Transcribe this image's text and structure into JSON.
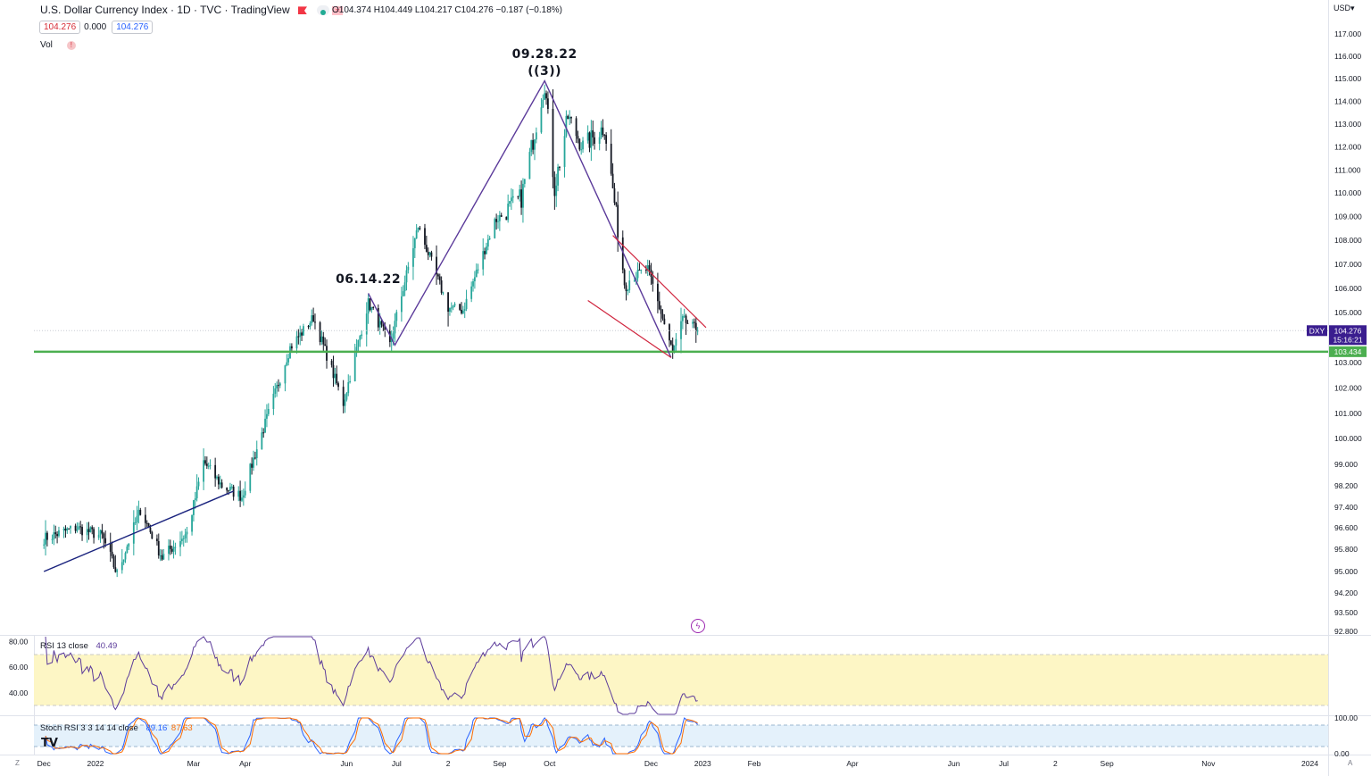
{
  "header": {
    "title": "U.S. Dollar Currency Index · 1D · TVC · TradingView",
    "ohlc": "O104.374 H104.449 L104.217 C104.276 −0.187 (−0.18%)",
    "bid": "104.276",
    "spread": "0.000",
    "ask": "104.276",
    "vol_label": "Vol",
    "currency": "USD"
  },
  "indicators": {
    "rsi_label": "RSI 13 close",
    "rsi_value": "40.49",
    "stoch_label": "Stoch RSI 3 3 14 14 close",
    "stoch_k": "89.16",
    "stoch_d": "87.63"
  },
  "markers": {
    "tz_z": "Z",
    "auto_a": "A"
  },
  "colors": {
    "up": "#26a69a",
    "down": "#131722",
    "support": "#4caf50",
    "purple_line": "#5b3a9a",
    "channel": "#d0253e",
    "trend_line": "#1a237e",
    "rsi_band": "#fdf6c5",
    "stoch_band": "#e4f1fb"
  },
  "chart_data": {
    "type": "candlestick",
    "price_axis": {
      "ticks": [
        "117.000",
        "116.000",
        "115.000",
        "114.000",
        "113.000",
        "112.000",
        "111.000",
        "110.000",
        "109.000",
        "108.000",
        "107.000",
        "106.000",
        "105.000",
        "103.000",
        "102.000",
        "101.000",
        "100.000",
        "99.000",
        "98.200",
        "97.400",
        "96.600",
        "95.800",
        "95.000",
        "94.200",
        "93.500",
        "92.800"
      ],
      "range": [
        92.6,
        117.6
      ],
      "last_price": "104.276",
      "last_symbol": "DXY",
      "countdown": "15:16:21",
      "support_level": "103.434"
    },
    "time_axis": {
      "labels": [
        "Dec",
        "2022",
        "Mar",
        "Apr",
        "Jun",
        "Jul",
        "2",
        "Sep",
        "Oct",
        "Dec",
        "2023",
        "Feb",
        "Apr",
        "Jun",
        "Jul",
        "2",
        "Sep",
        "Nov",
        "2024"
      ]
    },
    "annotations": [
      {
        "text": "06.14.22",
        "date": "2022-06-14",
        "price": 105.8
      },
      {
        "text": "09.28.22",
        "date": "2022-09-28",
        "price": 114.8
      },
      {
        "text": "((3))",
        "date": "2022-09-28",
        "price": 114.8
      }
    ],
    "candle_waypoints": [
      [
        "2021-12-01",
        96.2
      ],
      [
        "2021-12-20",
        96.6
      ],
      [
        "2022-01-05",
        96.3
      ],
      [
        "2022-01-14",
        94.9
      ],
      [
        "2022-01-28",
        97.3
      ],
      [
        "2022-02-10",
        95.5
      ],
      [
        "2022-02-25",
        96.4
      ],
      [
        "2022-03-07",
        99.1
      ],
      [
        "2022-03-18",
        98.2
      ],
      [
        "2022-03-30",
        97.8
      ],
      [
        "2022-04-28",
        103.6
      ],
      [
        "2022-05-12",
        104.8
      ],
      [
        "2022-05-30",
        101.4
      ],
      [
        "2022-06-14",
        105.4
      ],
      [
        "2022-06-27",
        103.7
      ],
      [
        "2022-07-14",
        108.6
      ],
      [
        "2022-08-01",
        105.2
      ],
      [
        "2022-08-10",
        105.1
      ],
      [
        "2022-08-29",
        108.8
      ],
      [
        "2022-09-14",
        109.8
      ],
      [
        "2022-09-28",
        114.8
      ],
      [
        "2022-10-04",
        110.2
      ],
      [
        "2022-10-12",
        113.3
      ],
      [
        "2022-10-21",
        112.0
      ],
      [
        "2022-11-03",
        112.9
      ],
      [
        "2022-11-15",
        106.3
      ],
      [
        "2022-11-29",
        106.8
      ],
      [
        "2022-12-14",
        103.4
      ],
      [
        "2022-12-20",
        104.7
      ],
      [
        "2022-12-29",
        104.276
      ]
    ],
    "trend_lines": [
      {
        "name": "zigzag",
        "points": [
          [
            "2022-06-14",
            105.8
          ],
          [
            "2022-06-30",
            103.7
          ],
          [
            "2022-09-28",
            114.9
          ],
          [
            "2022-12-13",
            103.2
          ]
        ]
      },
      {
        "name": "uptrend",
        "points": [
          [
            "2021-12-01",
            95.0
          ],
          [
            "2022-03-25",
            98.0
          ]
        ]
      },
      {
        "name": "channel-upper",
        "points": [
          [
            "2022-11-08",
            108.2
          ],
          [
            "2023-01-03",
            104.4
          ]
        ]
      },
      {
        "name": "channel-lower",
        "points": [
          [
            "2022-10-24",
            105.5
          ],
          [
            "2022-12-13",
            103.2
          ]
        ]
      }
    ],
    "rsi": {
      "axis_ticks": [
        "80.00",
        "60.00",
        "40.00"
      ],
      "band": [
        30,
        70
      ],
      "range": [
        23,
        84
      ],
      "last": 40.49
    },
    "stoch_rsi": {
      "axis_ticks": [
        "100.00",
        "0.00"
      ],
      "band": [
        20,
        80
      ],
      "k_last": 89.16,
      "d_last": 87.63
    }
  }
}
